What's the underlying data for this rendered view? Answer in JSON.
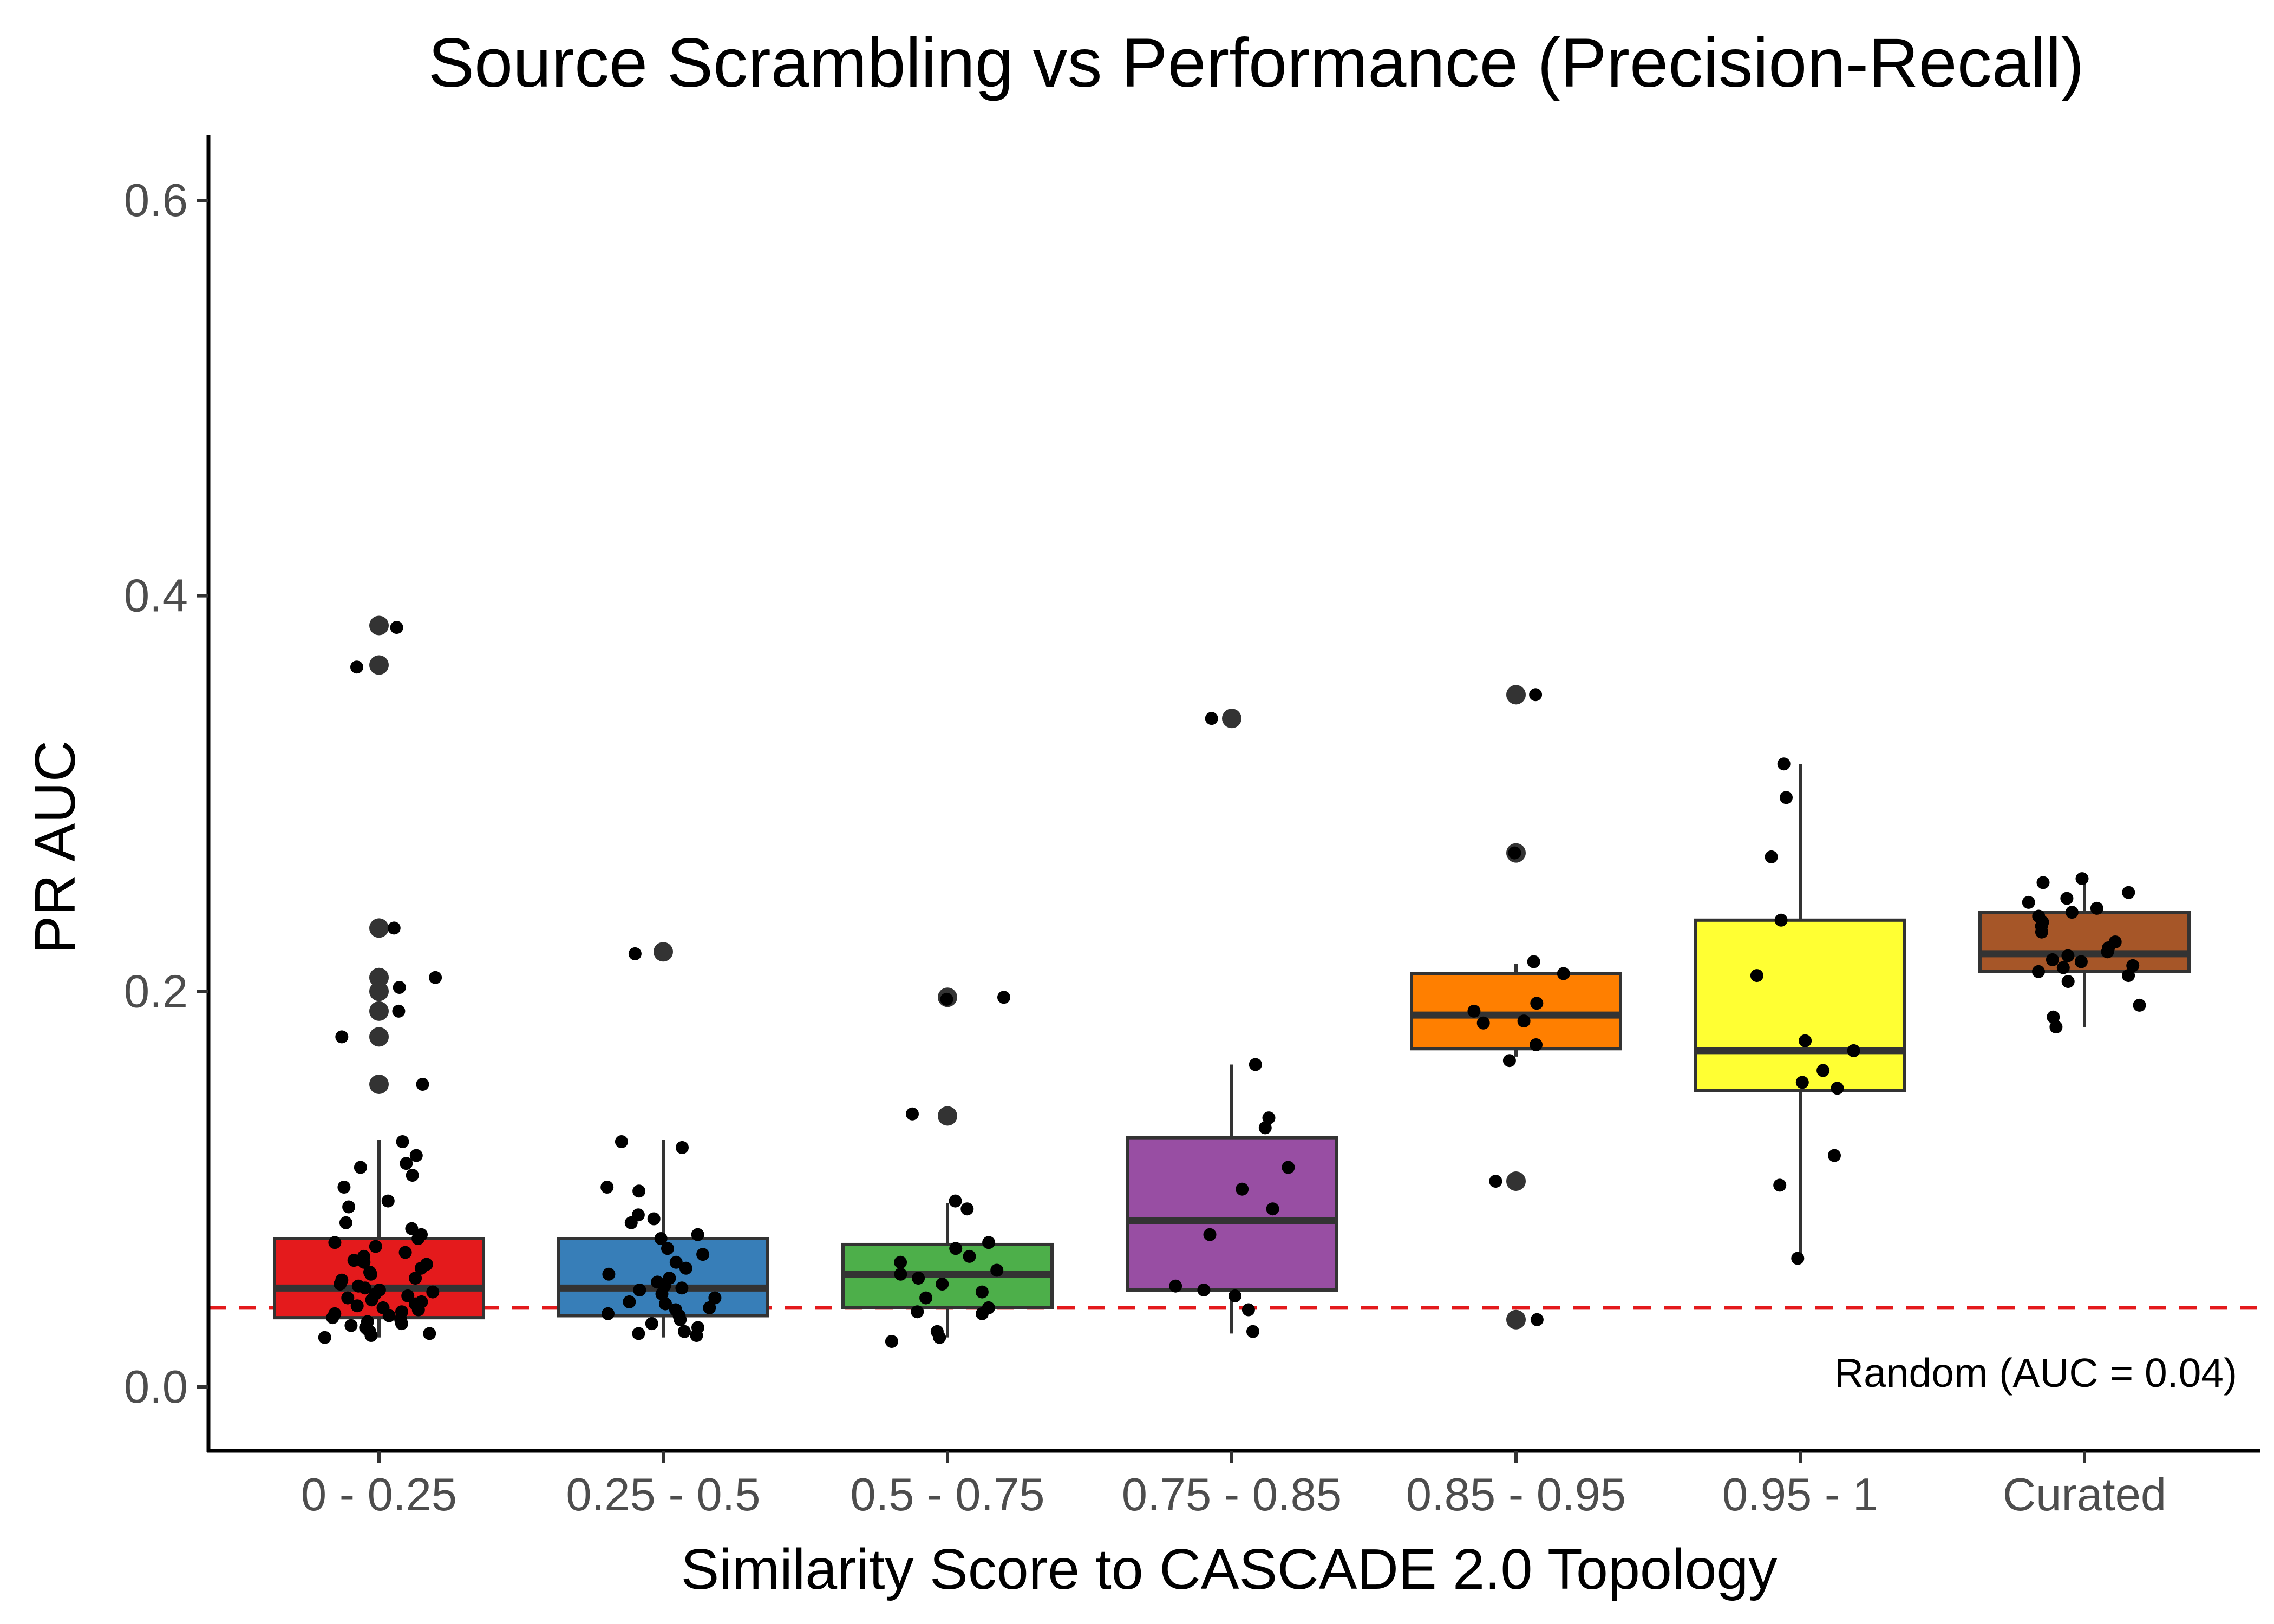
{
  "chart_data": {
    "type": "box",
    "title": "Source Scrambling vs Performance (Precision-Recall)",
    "xlabel": "Similarity Score to CASCADE 2.0 Topology",
    "ylabel": "PR AUC",
    "ylim": [
      -0.03,
      0.63
    ],
    "yticks": [
      0.0,
      0.2,
      0.4,
      0.6
    ],
    "ytick_labels": [
      "0.0",
      "0.2",
      "0.4",
      "0.6"
    ],
    "grid": false,
    "legend": "none",
    "reference_line": {
      "y": 0.04,
      "color": "#e41a1c",
      "style": "dashed",
      "label": "Random (AUC = 0.04)"
    },
    "categories": [
      "0 - 0.25",
      "0.25 - 0.5",
      "0.5 - 0.75",
      "0.75 - 0.85",
      "0.85 - 0.95",
      "0.95 - 1",
      "Curated"
    ],
    "colors": [
      "#e41a1c",
      "#377eb8",
      "#4daf4a",
      "#984ea3",
      "#ff7f00",
      "#ffff33",
      "#a65628"
    ],
    "boxes": [
      {
        "q1": 0.035,
        "median": 0.05,
        "q3": 0.075,
        "whisker_low": 0.025,
        "whisker_high": 0.125,
        "outliers": [
          0.385,
          0.365,
          0.232,
          0.207,
          0.2,
          0.19,
          0.177,
          0.153
        ]
      },
      {
        "q1": 0.036,
        "median": 0.05,
        "q3": 0.075,
        "whisker_low": 0.025,
        "whisker_high": 0.125,
        "outliers": [
          0.22
        ]
      },
      {
        "q1": 0.04,
        "median": 0.057,
        "q3": 0.072,
        "whisker_low": 0.025,
        "whisker_high": 0.093,
        "outliers": [
          0.197,
          0.137
        ]
      },
      {
        "q1": 0.049,
        "median": 0.084,
        "q3": 0.126,
        "whisker_low": 0.027,
        "whisker_high": 0.163,
        "outliers": [
          0.338
        ]
      },
      {
        "q1": 0.171,
        "median": 0.188,
        "q3": 0.209,
        "whisker_low": 0.167,
        "whisker_high": 0.214,
        "outliers": [
          0.35,
          0.27,
          0.104,
          0.034
        ]
      },
      {
        "q1": 0.15,
        "median": 0.17,
        "q3": 0.236,
        "whisker_low": 0.065,
        "whisker_high": 0.315,
        "outliers": []
      },
      {
        "q1": 0.21,
        "median": 0.219,
        "q3": 0.24,
        "whisker_low": 0.182,
        "whisker_high": 0.255,
        "outliers": []
      }
    ],
    "jitter_points": [
      [
        0.384,
        0.364,
        0.232,
        0.207,
        0.202,
        0.19,
        0.177,
        0.153,
        0.124,
        0.117,
        0.113,
        0.111,
        0.107,
        0.101,
        0.094,
        0.091,
        0.083,
        0.08,
        0.077,
        0.075,
        0.073,
        0.071,
        0.068,
        0.066,
        0.064,
        0.063,
        0.062,
        0.06,
        0.058,
        0.057,
        0.055,
        0.054,
        0.052,
        0.051,
        0.05,
        0.049,
        0.048,
        0.047,
        0.046,
        0.045,
        0.044,
        0.043,
        0.042,
        0.041,
        0.04,
        0.039,
        0.038,
        0.037,
        0.036,
        0.035,
        0.034,
        0.033,
        0.032,
        0.031,
        0.03,
        0.029,
        0.028,
        0.027,
        0.026,
        0.025
      ],
      [
        0.219,
        0.124,
        0.121,
        0.101,
        0.099,
        0.087,
        0.085,
        0.083,
        0.077,
        0.075,
        0.07,
        0.067,
        0.063,
        0.06,
        0.057,
        0.055,
        0.053,
        0.051,
        0.05,
        0.049,
        0.047,
        0.045,
        0.043,
        0.042,
        0.04,
        0.039,
        0.037,
        0.036,
        0.034,
        0.032,
        0.03,
        0.028,
        0.027,
        0.026
      ],
      [
        0.197,
        0.196,
        0.138,
        0.094,
        0.09,
        0.073,
        0.07,
        0.066,
        0.063,
        0.059,
        0.057,
        0.055,
        0.052,
        0.048,
        0.045,
        0.04,
        0.038,
        0.037,
        0.028,
        0.025,
        0.023
      ],
      [
        0.338,
        0.163,
        0.136,
        0.131,
        0.111,
        0.1,
        0.09,
        0.077,
        0.051,
        0.049,
        0.046,
        0.039,
        0.028
      ],
      [
        0.35,
        0.27,
        0.215,
        0.209,
        0.194,
        0.19,
        0.185,
        0.184,
        0.173,
        0.165,
        0.104,
        0.034
      ],
      [
        0.315,
        0.298,
        0.268,
        0.236,
        0.208,
        0.175,
        0.17,
        0.16,
        0.154,
        0.151,
        0.117,
        0.102,
        0.065
      ],
      [
        0.257,
        0.255,
        0.25,
        0.247,
        0.245,
        0.242,
        0.24,
        0.238,
        0.235,
        0.233,
        0.23,
        0.225,
        0.222,
        0.22,
        0.218,
        0.216,
        0.215,
        0.213,
        0.212,
        0.21,
        0.208,
        0.205,
        0.193,
        0.187,
        0.182
      ]
    ]
  }
}
